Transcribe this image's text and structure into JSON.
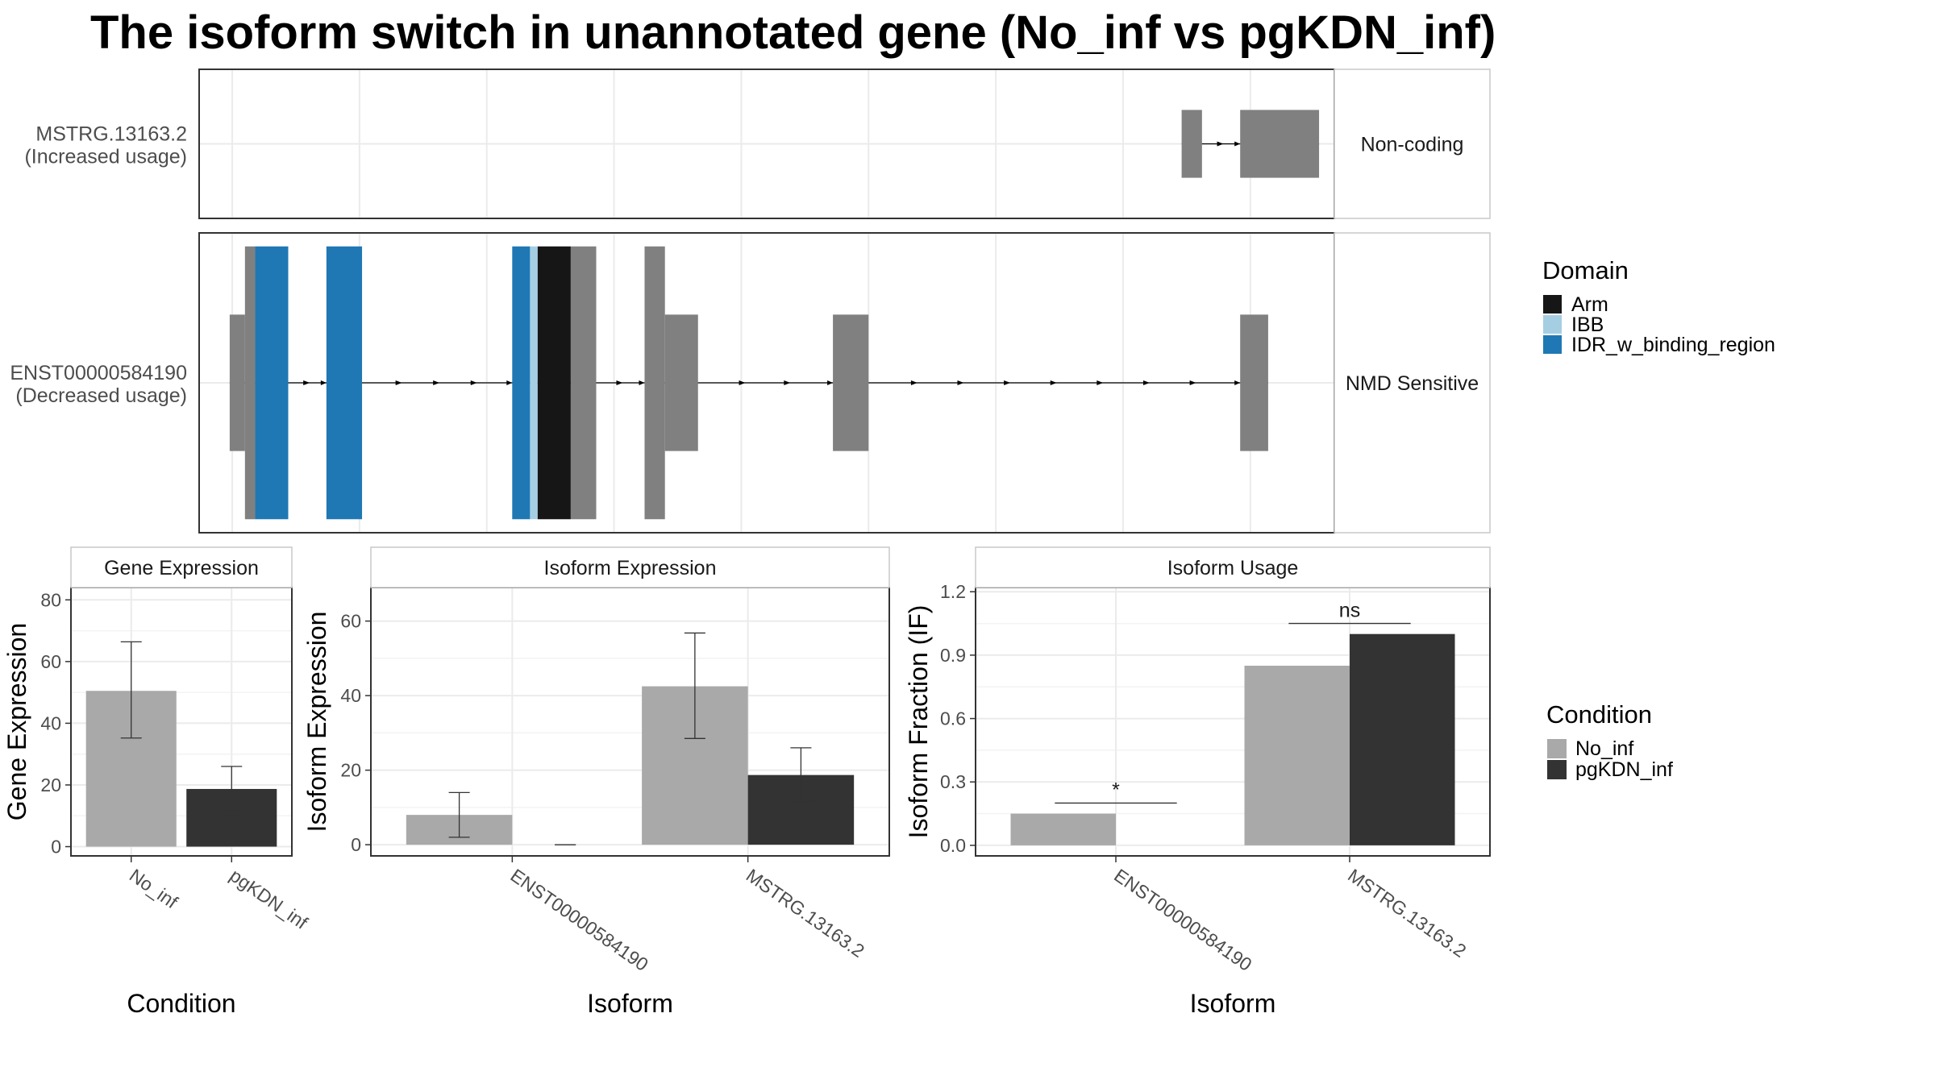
{
  "title": "The isoform switch in unannotated gene (No_inf vs pgKDN_inf)",
  "colors": {
    "no_inf": "#a9a9a9",
    "pgkdn_inf": "#333333",
    "exon": "#808080",
    "arm": "#161616",
    "ibb": "#a6cee3",
    "idr": "#1f78b4",
    "grid": "#ebebeb",
    "border": "#333333"
  },
  "gene_structure": {
    "transcripts": [
      {
        "id": "MSTRG.13163.2",
        "usage": "(Increased usage)",
        "strip": "Non-coding",
        "exons": [
          {
            "start": 1073,
            "end": 1081,
            "type": "utr"
          },
          {
            "start": 1096,
            "end": 1127,
            "type": "utr"
          }
        ]
      },
      {
        "id": "ENST00000584190",
        "usage": "(Decreased usage)",
        "strip": "NMD Sensitive",
        "exons": [
          {
            "start": 699,
            "end": 705,
            "type": "utr"
          },
          {
            "start": 705,
            "end": 709,
            "type": "cds"
          },
          {
            "start": 709,
            "end": 722,
            "type": "cds",
            "domain": "IDR_w_binding_region"
          },
          {
            "start": 737,
            "end": 751,
            "type": "cds",
            "domain": "IDR_w_binding_region"
          },
          {
            "start": 810,
            "end": 817,
            "type": "cds",
            "domain": "IDR_w_binding_region"
          },
          {
            "start": 817,
            "end": 820,
            "type": "cds",
            "domain": "IBB"
          },
          {
            "start": 820,
            "end": 833,
            "type": "cds",
            "domain": "Arm"
          },
          {
            "start": 833,
            "end": 843,
            "type": "cds"
          },
          {
            "start": 862,
            "end": 870,
            "type": "cds"
          },
          {
            "start": 870,
            "end": 883,
            "type": "utr"
          },
          {
            "start": 936,
            "end": 950,
            "type": "utr"
          },
          {
            "start": 1096,
            "end": 1107,
            "type": "utr"
          }
        ]
      }
    ],
    "legend_title": "Domain",
    "legend": [
      {
        "label": "Arm",
        "color": "#161616"
      },
      {
        "label": "IBB",
        "color": "#a6cee3"
      },
      {
        "label": "IDR_w_binding_region",
        "color": "#1f78b4"
      }
    ]
  },
  "chart_data": [
    {
      "type": "bar",
      "title": "Gene Expression",
      "xlabel": "Condition",
      "ylabel": "Gene Expression",
      "categories": [
        "No_inf",
        "pgKDN_inf"
      ],
      "values": [
        50.5,
        18.7
      ],
      "error_low": [
        35.2,
        11.5
      ],
      "error_high": [
        66.4,
        26.0
      ],
      "ylim": [
        -3,
        84
      ],
      "yticks": [
        0,
        20,
        40,
        60,
        80
      ]
    },
    {
      "type": "bar",
      "title": "Isoform Expression",
      "xlabel": "Isoform",
      "ylabel": "Isoform Expression",
      "categories": [
        "ENST00000584190",
        "MSTRG.13163.2"
      ],
      "series": [
        {
          "name": "No_inf",
          "values": [
            8.0,
            42.5
          ],
          "error_low": [
            2.0,
            28.5
          ],
          "error_high": [
            14.0,
            56.8
          ]
        },
        {
          "name": "pgKDN_inf",
          "values": [
            0.0,
            18.7
          ],
          "error_low": [
            0.0,
            11.5
          ],
          "error_high": [
            0.0,
            26.0
          ]
        }
      ],
      "ylim": [
        -3,
        69
      ],
      "yticks": [
        0,
        20,
        40,
        60
      ]
    },
    {
      "type": "bar",
      "title": "Isoform Usage",
      "xlabel": "Isoform",
      "ylabel": "Isoform Fraction (IF)",
      "categories": [
        "ENST00000584190",
        "MSTRG.13163.2"
      ],
      "series": [
        {
          "name": "No_inf",
          "values": [
            0.15,
            0.85
          ]
        },
        {
          "name": "pgKDN_inf",
          "values": [
            0.0,
            1.0
          ]
        }
      ],
      "annotations": [
        {
          "category": "ENST00000584190",
          "label": "*",
          "y": 0.2
        },
        {
          "category": "MSTRG.13163.2",
          "label": "ns",
          "y": 1.05
        }
      ],
      "ylim": [
        -0.05,
        1.22
      ],
      "yticks": [
        0.0,
        0.3,
        0.6,
        0.9,
        1.2
      ],
      "ytick_labels": [
        "0.0",
        "0.3",
        "0.6",
        "0.9",
        "1.2"
      ]
    }
  ],
  "condition_legend": {
    "title": "Condition",
    "items": [
      {
        "label": "No_inf",
        "color": "#a9a9a9"
      },
      {
        "label": "pgKDN_inf",
        "color": "#333333"
      }
    ]
  }
}
